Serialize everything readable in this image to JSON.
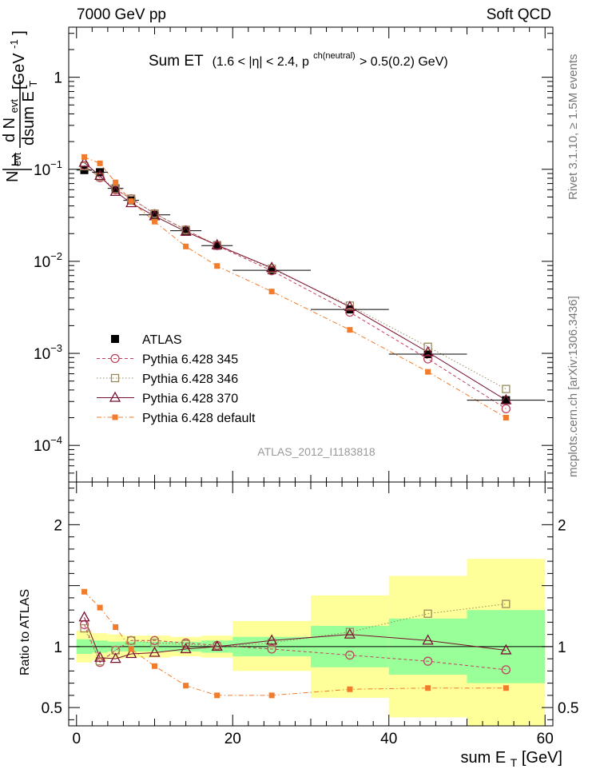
{
  "header": {
    "left": "7000 GeV pp",
    "right": "Soft QCD",
    "title_main": "Sum ET",
    "title_cut_a": "(1.6 < |η| < 2.4, p",
    "title_cut_sup": "ch(neutral)",
    "title_cut_b": " > 0.5(0.2) GeV)"
  },
  "side": {
    "rivet": "Rivet 3.1.10, ≥ 1.5M events",
    "mcplots": "mcplots.cern.ch [arXiv:1306.3436]"
  },
  "watermark": "ATLAS_2012_I1183818",
  "ylabel_top": {
    "one": "1",
    "n": "N",
    "evt": "evt",
    "d": "d N",
    "dsum": "dsum E",
    "t": "T",
    "unit": "[GeV",
    "unit_sup": "-1",
    "unit_end": "]"
  },
  "ylabel_ratio": "Ratio to ATLAS",
  "xlabel": {
    "main": "sum E",
    "sub": "T",
    "unit": " [GeV]"
  },
  "chart_data": {
    "type": "scatter",
    "x_edges": [
      0,
      2,
      4,
      6,
      8,
      12,
      16,
      20,
      30,
      40,
      50,
      60
    ],
    "x": [
      1,
      3,
      5,
      7,
      10,
      14,
      18,
      25,
      35,
      45,
      55
    ],
    "xlim": [
      -1,
      61
    ],
    "xticks": [
      0,
      20,
      40,
      60
    ],
    "top": {
      "yscale": "log",
      "ylim": [
        4e-05,
        3.5
      ],
      "ytick_labels": [
        {
          "v": 1,
          "base": "1",
          "exp": ""
        },
        {
          "v": 0.1,
          "base": "10",
          "exp": "−1"
        },
        {
          "v": 0.01,
          "base": "10",
          "exp": "−2"
        },
        {
          "v": 0.001,
          "base": "10",
          "exp": "−3"
        },
        {
          "v": 0.0001,
          "base": "10",
          "exp": "−4"
        }
      ]
    },
    "ratio": {
      "ylim": [
        0.35,
        2.35
      ],
      "yticks": [
        0.5,
        1,
        1.5,
        2
      ],
      "ytick_labels": [
        "0.5",
        "1",
        "",
        "2"
      ],
      "band_stat": [
        [
          0.94,
          1.06
        ],
        [
          0.95,
          1.05
        ],
        [
          0.96,
          1.04
        ],
        [
          0.96,
          1.04
        ],
        [
          0.96,
          1.04
        ],
        [
          0.96,
          1.04
        ],
        [
          0.95,
          1.05
        ],
        [
          0.92,
          1.08
        ],
        [
          0.83,
          1.17
        ],
        [
          0.77,
          1.23
        ],
        [
          0.7,
          1.3
        ]
      ],
      "band_tot": [
        [
          0.87,
          1.13
        ],
        [
          0.89,
          1.11
        ],
        [
          0.9,
          1.1
        ],
        [
          0.91,
          1.09
        ],
        [
          0.91,
          1.09
        ],
        [
          0.92,
          1.08
        ],
        [
          0.91,
          1.09
        ],
        [
          0.8,
          1.21
        ],
        [
          0.58,
          1.42
        ],
        [
          0.42,
          1.58
        ],
        [
          0.35,
          1.72
        ]
      ]
    },
    "legend_position": "lower-left",
    "series": [
      {
        "name": "ATLAS",
        "style": "data",
        "values": [
          0.098,
          0.093,
          0.062,
          0.046,
          0.032,
          0.0215,
          0.0148,
          0.008,
          0.003,
          0.00098,
          0.00031
        ],
        "ratio": [
          1,
          1,
          1,
          1,
          1,
          1,
          1,
          1,
          1,
          1,
          1
        ]
      },
      {
        "name": "Pythia 6.428 345",
        "style": "circle-open",
        "color": "#c0435e",
        "values": [
          0.11,
          0.081,
          0.06,
          0.048,
          0.033,
          0.022,
          0.0148,
          0.0079,
          0.0028,
          0.00087,
          0.00025
        ],
        "ratio": [
          1.18,
          0.87,
          0.97,
          1.05,
          1.05,
          1.03,
          1.01,
          0.98,
          0.93,
          0.88,
          0.81
        ]
      },
      {
        "name": "Pythia 6.428 346",
        "style": "square-open",
        "color": "#9c8a5c",
        "values": [
          0.108,
          0.083,
          0.061,
          0.048,
          0.033,
          0.022,
          0.015,
          0.0083,
          0.0033,
          0.00118,
          0.00041
        ],
        "ratio": [
          1.15,
          0.88,
          0.97,
          1.05,
          1.03,
          1.02,
          1.0,
          1.03,
          1.12,
          1.27,
          1.35
        ]
      },
      {
        "name": "Pythia 6.428 370",
        "style": "triangle-open",
        "color": "#7a1030",
        "values": [
          0.118,
          0.085,
          0.057,
          0.043,
          0.031,
          0.021,
          0.015,
          0.0085,
          0.0032,
          0.00103,
          0.00031
        ],
        "ratio": [
          1.24,
          0.91,
          0.9,
          0.94,
          0.95,
          0.98,
          1.0,
          1.05,
          1.1,
          1.05,
          0.97
        ]
      },
      {
        "name": "Pythia 6.428 default",
        "style": "square-filled",
        "color": "#f07c2c",
        "values": [
          0.136,
          0.116,
          0.072,
          0.045,
          0.027,
          0.0145,
          0.0089,
          0.0047,
          0.0018,
          0.00063,
          0.0002
        ],
        "ratio": [
          1.45,
          1.32,
          1.16,
          0.98,
          0.84,
          0.68,
          0.6,
          0.6,
          0.65,
          0.66,
          0.66
        ]
      }
    ]
  }
}
